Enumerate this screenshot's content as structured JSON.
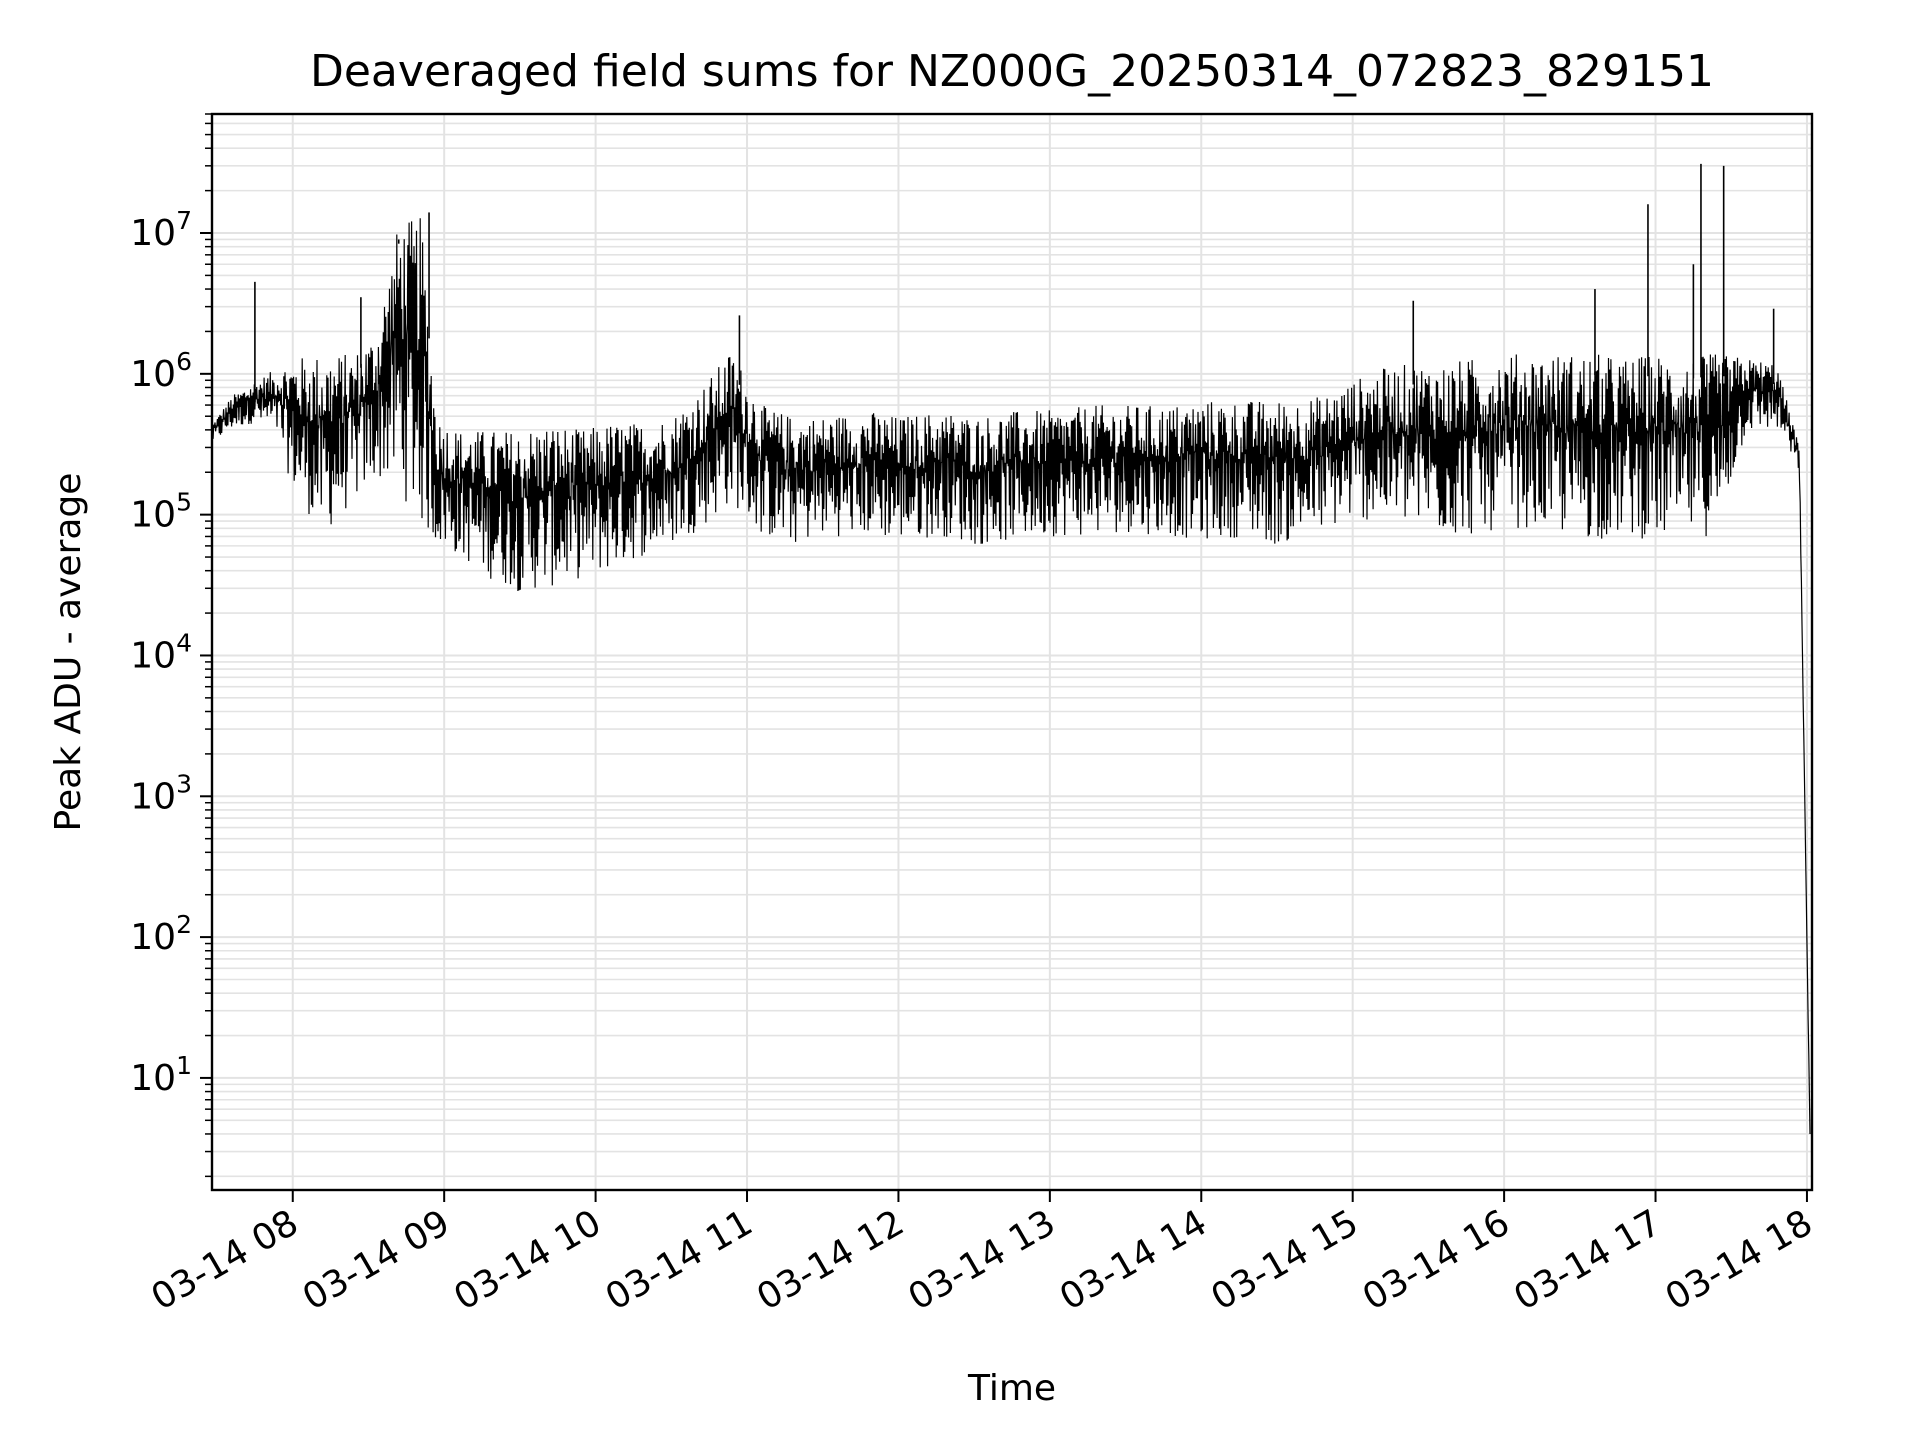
{
  "chart_data": {
    "type": "line",
    "title": "Deaveraged field sums for NZ000G_20250314_072823_829151",
    "xlabel": "Time",
    "ylabel": "Peak ADU - average",
    "yscale": "log",
    "ylim": [
      1.6,
      70000000
    ],
    "xlim": [
      "03-14 07:28",
      "03-14 18:02"
    ],
    "grid": true,
    "line_color": "#000000",
    "grid_color": "#e3e3e3",
    "x_ticks": [
      "03-14 08",
      "03-14 09",
      "03-14 10",
      "03-14 11",
      "03-14 12",
      "03-14 13",
      "03-14 14",
      "03-14 15",
      "03-14 16",
      "03-14 17",
      "03-14 18"
    ],
    "x_tick_hours": [
      8,
      9,
      10,
      11,
      12,
      13,
      14,
      15,
      16,
      17,
      18
    ],
    "y_ticks": [
      {
        "base": "10",
        "exp": "1",
        "value": 10
      },
      {
        "base": "10",
        "exp": "2",
        "value": 100
      },
      {
        "base": "10",
        "exp": "3",
        "value": 1000
      },
      {
        "base": "10",
        "exp": "4",
        "value": 10000
      },
      {
        "base": "10",
        "exp": "5",
        "value": 100000
      },
      {
        "base": "10",
        "exp": "6",
        "value": 1000000
      },
      {
        "base": "10",
        "exp": "7",
        "value": 10000000
      }
    ],
    "series_envelope": {
      "description_hours": "x = hour of 03-14, lo/hi = approximate min/max of the plotted trace",
      "x": [
        7.47,
        7.6,
        7.75,
        7.9,
        8.0,
        8.2,
        8.4,
        8.55,
        8.7,
        8.85,
        8.95,
        9.1,
        9.3,
        9.5,
        9.7,
        9.9,
        10.1,
        10.3,
        10.5,
        10.7,
        10.9,
        11.1,
        11.3,
        11.5,
        11.8,
        12.0,
        12.3,
        12.5,
        12.8,
        13.0,
        13.3,
        13.5,
        13.8,
        14.0,
        14.3,
        14.5,
        14.8,
        15.0,
        15.2,
        15.4,
        15.6,
        15.8,
        16.0,
        16.2,
        16.4,
        16.6,
        16.8,
        17.0,
        17.2,
        17.4,
        17.6,
        17.8,
        17.95,
        18.02
      ],
      "lo": [
        320000,
        400000,
        450000,
        350000,
        150000,
        70000,
        120000,
        180000,
        150000,
        80000,
        60000,
        50000,
        35000,
        28000,
        30000,
        35000,
        40000,
        50000,
        60000,
        80000,
        120000,
        70000,
        60000,
        70000,
        70000,
        65000,
        70000,
        60000,
        65000,
        70000,
        70000,
        75000,
        70000,
        65000,
        70000,
        60000,
        75000,
        90000,
        90000,
        80000,
        70000,
        70000,
        80000,
        80000,
        70000,
        65000,
        70000,
        65000,
        70000,
        70000,
        380000,
        400000,
        200000,
        4
      ],
      "hi": [
        450000,
        700000,
        900000,
        1100000,
        1300000,
        1400000,
        1400000,
        2000000,
        12000000,
        13000000,
        500000,
        400000,
        400000,
        400000,
        450000,
        400000,
        450000,
        450000,
        500000,
        800000,
        1500000,
        600000,
        500000,
        500000,
        550000,
        500000,
        550000,
        500000,
        550000,
        550000,
        600000,
        600000,
        600000,
        650000,
        650000,
        650000,
        700000,
        900000,
        1100000,
        1200000,
        1200000,
        1300000,
        1400000,
        1400000,
        1400000,
        1400000,
        1300000,
        1400000,
        1300000,
        1400000,
        1300000,
        1200000,
        300000,
        4
      ]
    },
    "spikes": [
      {
        "x": 7.75,
        "y": 4500000
      },
      {
        "x": 8.45,
        "y": 3500000
      },
      {
        "x": 8.7,
        "y": 9000000
      },
      {
        "x": 8.9,
        "y": 14000000
      },
      {
        "x": 10.95,
        "y": 2600000
      },
      {
        "x": 15.4,
        "y": 3300000
      },
      {
        "x": 16.6,
        "y": 4000000
      },
      {
        "x": 16.95,
        "y": 16000000
      },
      {
        "x": 17.25,
        "y": 6000000
      },
      {
        "x": 17.3,
        "y": 31000000
      },
      {
        "x": 17.45,
        "y": 30000000
      },
      {
        "x": 17.78,
        "y": 2900000
      }
    ]
  }
}
